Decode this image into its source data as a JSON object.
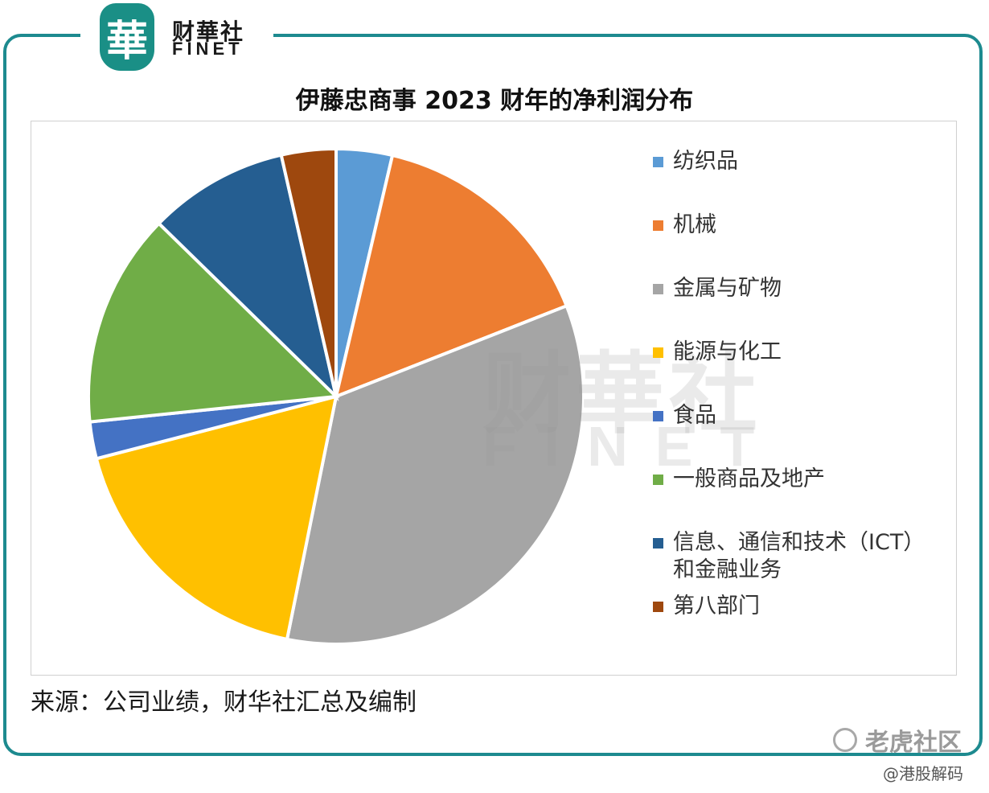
{
  "brand": {
    "logo_char": "華",
    "name_cn": "财華社",
    "name_en": "FINET"
  },
  "watermark": {
    "cn": "财華社",
    "en": "FINET"
  },
  "chart_data": {
    "type": "pie",
    "title": "伊藤忠商事 2023 财年的净利润分布",
    "categories": [
      "纺织品",
      "机械",
      "金属与矿物",
      "能源与化工",
      "食品",
      "一般商品及地产",
      "信息、通信和技术（ICT）\n和金融业务",
      "第八部门"
    ],
    "values": [
      3.8,
      16.0,
      35.5,
      18.5,
      2.5,
      14.5,
      9.5,
      3.7
    ],
    "colors": [
      "#5b9bd5",
      "#ed7d31",
      "#a5a5a5",
      "#ffc000",
      "#4472c4",
      "#70ad47",
      "#255e91",
      "#9e480e"
    ],
    "start_angle_deg": 0,
    "direction": "clockwise",
    "legend_position": "right"
  },
  "source_note": "来源：公司业绩，财华社汇总及编制",
  "footer": {
    "community": "老虎社区",
    "handle": "@港股解码"
  }
}
